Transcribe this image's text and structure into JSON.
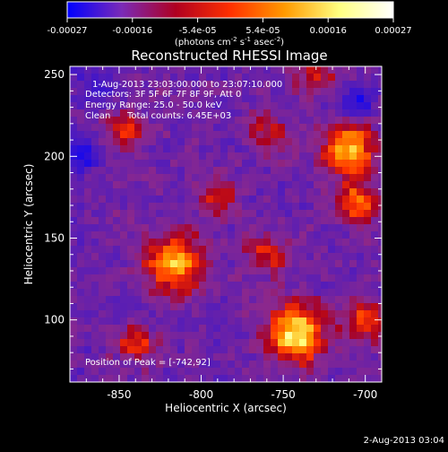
{
  "colorbar": {
    "ticks": [
      "-0.00027",
      "-0.00016",
      "-5.4e-05",
      "5.4e-05",
      "0.00016",
      "0.00027"
    ],
    "unit_label": "(photons cm",
    "unit_exp1": "-2",
    "unit_mid": " s",
    "unit_exp2": "-1",
    "unit_tail": " asec",
    "unit_exp3": "-2",
    "unit_close": ")",
    "range": [
      -0.00027,
      0.00027
    ],
    "colormap_stops": [
      "#0000ff",
      "#7a2ab8",
      "#b00020",
      "#ff3000",
      "#ff9a00",
      "#ffff80",
      "#ffffff"
    ]
  },
  "chart_data": {
    "type": "heatmap",
    "title": "Reconstructed RHESSI Image",
    "xlabel": "Heliocentric X (arcsec)",
    "ylabel": "Heliocentric Y (arcsec)",
    "xlim": [
      -880,
      -690
    ],
    "ylim": [
      62,
      255
    ],
    "x_ticks": [
      -850,
      -800,
      -750,
      -700
    ],
    "y_ticks": [
      100,
      150,
      200,
      250
    ],
    "x_tick_labels": [
      "-850",
      "-800",
      "-750",
      "-700"
    ],
    "y_tick_labels": [
      "100",
      "150",
      "200",
      "250"
    ],
    "bright_sources": [
      {
        "x": -742,
        "y": 92,
        "intensity": 1.0,
        "sigma": 12
      },
      {
        "x": -815,
        "y": 135,
        "intensity": 0.75,
        "sigma": 13
      },
      {
        "x": -710,
        "y": 205,
        "intensity": 0.85,
        "sigma": 11
      },
      {
        "x": -705,
        "y": 172,
        "intensity": 0.6,
        "sigma": 9
      },
      {
        "x": -845,
        "y": 215,
        "intensity": 0.55,
        "sigma": 8
      },
      {
        "x": -790,
        "y": 175,
        "intensity": 0.45,
        "sigma": 8
      },
      {
        "x": -760,
        "y": 215,
        "intensity": 0.4,
        "sigma": 8
      },
      {
        "x": -840,
        "y": 85,
        "intensity": 0.5,
        "sigma": 8
      },
      {
        "x": -700,
        "y": 100,
        "intensity": 0.55,
        "sigma": 9
      },
      {
        "x": -760,
        "y": 140,
        "intensity": 0.45,
        "sigma": 9
      },
      {
        "x": -730,
        "y": 250,
        "intensity": 0.4,
        "sigma": 9
      }
    ],
    "dark_sources": [
      {
        "x": -872,
        "y": 200,
        "intensity": 0.9,
        "sigma": 7
      },
      {
        "x": -705,
        "y": 232,
        "intensity": 0.9,
        "sigma": 7
      },
      {
        "x": -860,
        "y": 245,
        "intensity": 0.5,
        "sigma": 9
      }
    ],
    "annotations": {
      "time_range": "1-Aug-2013 23:03:00.000 to 23:07:10.000",
      "detectors": "Detectors: 3F 5F 6F 7F 8F 9F, Att 0",
      "energy": "Energy Range: 25.0 - 50.0 keV",
      "clean_label": "Clean",
      "total_counts": "Total counts: 6.45E+03",
      "peak": "Position of Peak = [-742,92]"
    }
  },
  "footer": {
    "timestamp": "2-Aug-2013 03:04"
  }
}
